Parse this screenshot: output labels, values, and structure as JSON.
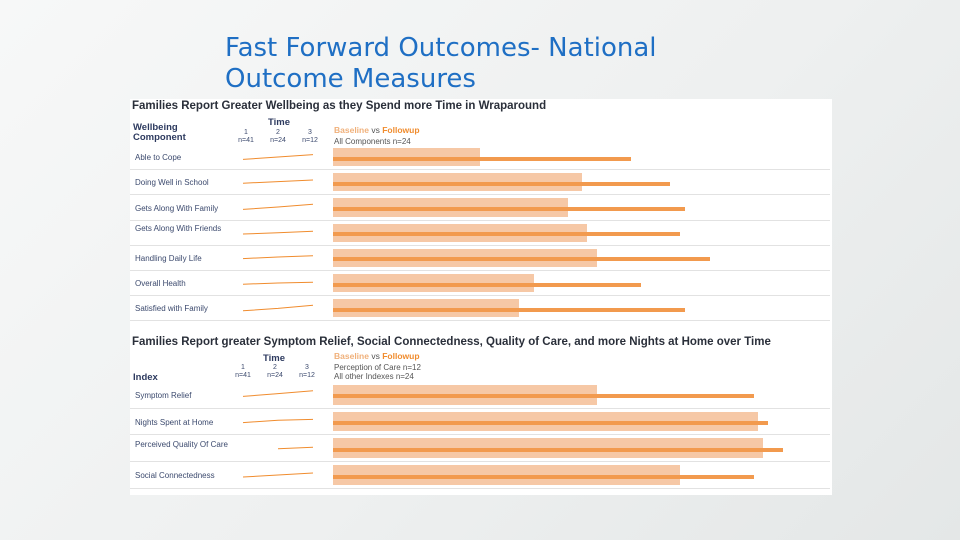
{
  "slide": {
    "title_line1": "Fast Forward Outcomes- National",
    "title_line2": "Outcome Measures"
  },
  "colors": {
    "title": "#1f6fc4",
    "baseline": "#f6c8a6",
    "followup": "#f29a4e",
    "sparkline": "#f08c2e"
  },
  "chart_data": [
    {
      "type": "bar",
      "title": "Families Report Greater Wellbeing as they Spend more Time in Wraparound",
      "category_header_line1": "Wellbeing",
      "category_header_line2": "Component",
      "time_header": "Time",
      "time_points": [
        {
          "label": "1",
          "n": "n=41"
        },
        {
          "label": "2",
          "n": "n=24"
        },
        {
          "label": "3",
          "n": "n=12"
        }
      ],
      "legend": {
        "baseline": "Baseline",
        "vs": "vs",
        "followup": "Followup"
      },
      "legend_sub": [
        "All Components n=24"
      ],
      "categories": [
        "Able to Cope",
        "Doing Well in School",
        "Gets Along With Family",
        "Gets Along With Friends",
        "Handling Daily Life",
        "Overall Health",
        "Satisfied with Family"
      ],
      "series": [
        {
          "name": "Baseline",
          "values": [
            0.3,
            0.51,
            0.48,
            0.52,
            0.54,
            0.41,
            0.38
          ]
        },
        {
          "name": "Followup",
          "values": [
            0.61,
            0.69,
            0.72,
            0.71,
            0.77,
            0.63,
            0.72
          ]
        }
      ],
      "sparklines": [
        [
          0.2,
          0.5,
          0.8
        ],
        [
          0.35,
          0.55,
          0.75
        ],
        [
          0.2,
          0.5,
          0.85
        ],
        [
          0.25,
          0.4,
          0.6
        ],
        [
          0.3,
          0.5,
          0.65
        ],
        [
          0.35,
          0.5,
          0.6
        ],
        [
          0.15,
          0.45,
          0.85
        ]
      ],
      "xlim": [
        0,
        1
      ]
    },
    {
      "type": "bar",
      "title": "Families Report greater Symptom Relief, Social Connectedness, Quality of Care, and more Nights at Home over Time",
      "category_header_line1": "Index",
      "time_header": "Time",
      "time_points": [
        {
          "label": "1",
          "n": "n=41"
        },
        {
          "label": "2",
          "n": "n=24"
        },
        {
          "label": "3",
          "n": "n=12"
        }
      ],
      "legend": {
        "baseline": "Baseline",
        "vs": "vs",
        "followup": "Followup"
      },
      "legend_sub": [
        "Perception of Care n=12",
        "All other Indexes n=24"
      ],
      "categories": [
        "Symptom Relief",
        "Nights Spent at Home",
        "Perceived Quality Of Care",
        "Social Connectedness"
      ],
      "series": [
        {
          "name": "Baseline",
          "values": [
            0.54,
            0.87,
            0.88,
            0.71
          ]
        },
        {
          "name": "Followup",
          "values": [
            0.86,
            0.89,
            0.92,
            0.86
          ]
        }
      ],
      "sparklines": [
        [
          0.2,
          0.55,
          0.9
        ],
        [
          0.3,
          0.6,
          0.7
        ],
        [
          null,
          0.4,
          0.6
        ],
        [
          0.25,
          0.5,
          0.75
        ]
      ],
      "xlim": [
        0,
        1
      ]
    }
  ]
}
